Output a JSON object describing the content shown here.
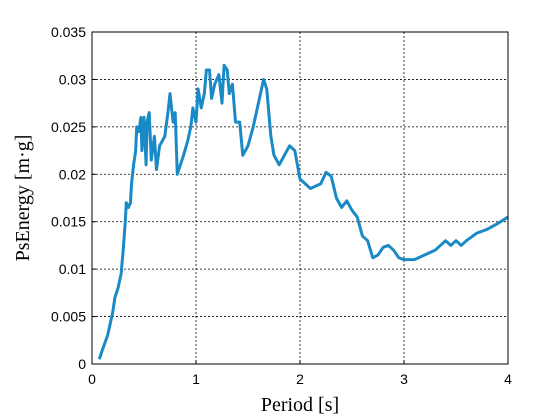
{
  "chart_data": {
    "type": "line",
    "xlabel": "Period [s]",
    "ylabel": "PsEnergy [m·g]",
    "x": [
      0.07,
      0.1,
      0.15,
      0.2,
      0.22,
      0.25,
      0.28,
      0.3,
      0.32,
      0.33,
      0.35,
      0.37,
      0.38,
      0.4,
      0.42,
      0.43,
      0.45,
      0.47,
      0.48,
      0.5,
      0.52,
      0.53,
      0.55,
      0.57,
      0.6,
      0.62,
      0.65,
      0.7,
      0.73,
      0.75,
      0.78,
      0.8,
      0.82,
      0.85,
      0.88,
      0.92,
      0.95,
      0.97,
      1.0,
      1.02,
      1.05,
      1.08,
      1.1,
      1.13,
      1.15,
      1.18,
      1.22,
      1.25,
      1.27,
      1.3,
      1.32,
      1.35,
      1.38,
      1.42,
      1.45,
      1.5,
      1.55,
      1.6,
      1.65,
      1.68,
      1.72,
      1.75,
      1.8,
      1.85,
      1.9,
      1.95,
      2.0,
      2.05,
      2.1,
      2.2,
      2.25,
      2.3,
      2.35,
      2.4,
      2.45,
      2.5,
      2.55,
      2.6,
      2.65,
      2.7,
      2.75,
      2.8,
      2.85,
      2.9,
      2.95,
      3.0,
      3.1,
      3.2,
      3.3,
      3.4,
      3.45,
      3.5,
      3.55,
      3.6,
      3.7,
      3.8,
      3.9,
      4.0
    ],
    "values": [
      0.0005,
      0.0015,
      0.003,
      0.0055,
      0.007,
      0.008,
      0.0095,
      0.012,
      0.015,
      0.017,
      0.0165,
      0.017,
      0.019,
      0.021,
      0.0225,
      0.025,
      0.0245,
      0.026,
      0.0225,
      0.026,
      0.021,
      0.0255,
      0.0265,
      0.0215,
      0.024,
      0.0205,
      0.023,
      0.024,
      0.0265,
      0.0285,
      0.0255,
      0.0265,
      0.02,
      0.021,
      0.022,
      0.0235,
      0.025,
      0.027,
      0.0255,
      0.029,
      0.027,
      0.0285,
      0.031,
      0.031,
      0.028,
      0.0295,
      0.0305,
      0.0275,
      0.0315,
      0.031,
      0.0285,
      0.0295,
      0.0255,
      0.0255,
      0.022,
      0.023,
      0.025,
      0.0275,
      0.03,
      0.029,
      0.024,
      0.022,
      0.021,
      0.022,
      0.023,
      0.0225,
      0.0195,
      0.019,
      0.0185,
      0.019,
      0.0202,
      0.0198,
      0.0175,
      0.0165,
      0.0172,
      0.0162,
      0.0155,
      0.0135,
      0.013,
      0.0112,
      0.0115,
      0.0123,
      0.0125,
      0.012,
      0.0112,
      0.011,
      0.011,
      0.0115,
      0.012,
      0.013,
      0.0125,
      0.013,
      0.0125,
      0.013,
      0.0138,
      0.0142,
      0.0148,
      0.0155
    ],
    "color": "#1a8ac6",
    "xlim": [
      0,
      4
    ],
    "xticks": [
      0,
      1,
      2,
      3,
      4
    ],
    "ylim": [
      0,
      0.035
    ],
    "yticks": [
      0,
      0.005,
      0.01,
      0.015,
      0.02,
      0.025,
      0.03,
      0.035
    ],
    "grid": true
  }
}
